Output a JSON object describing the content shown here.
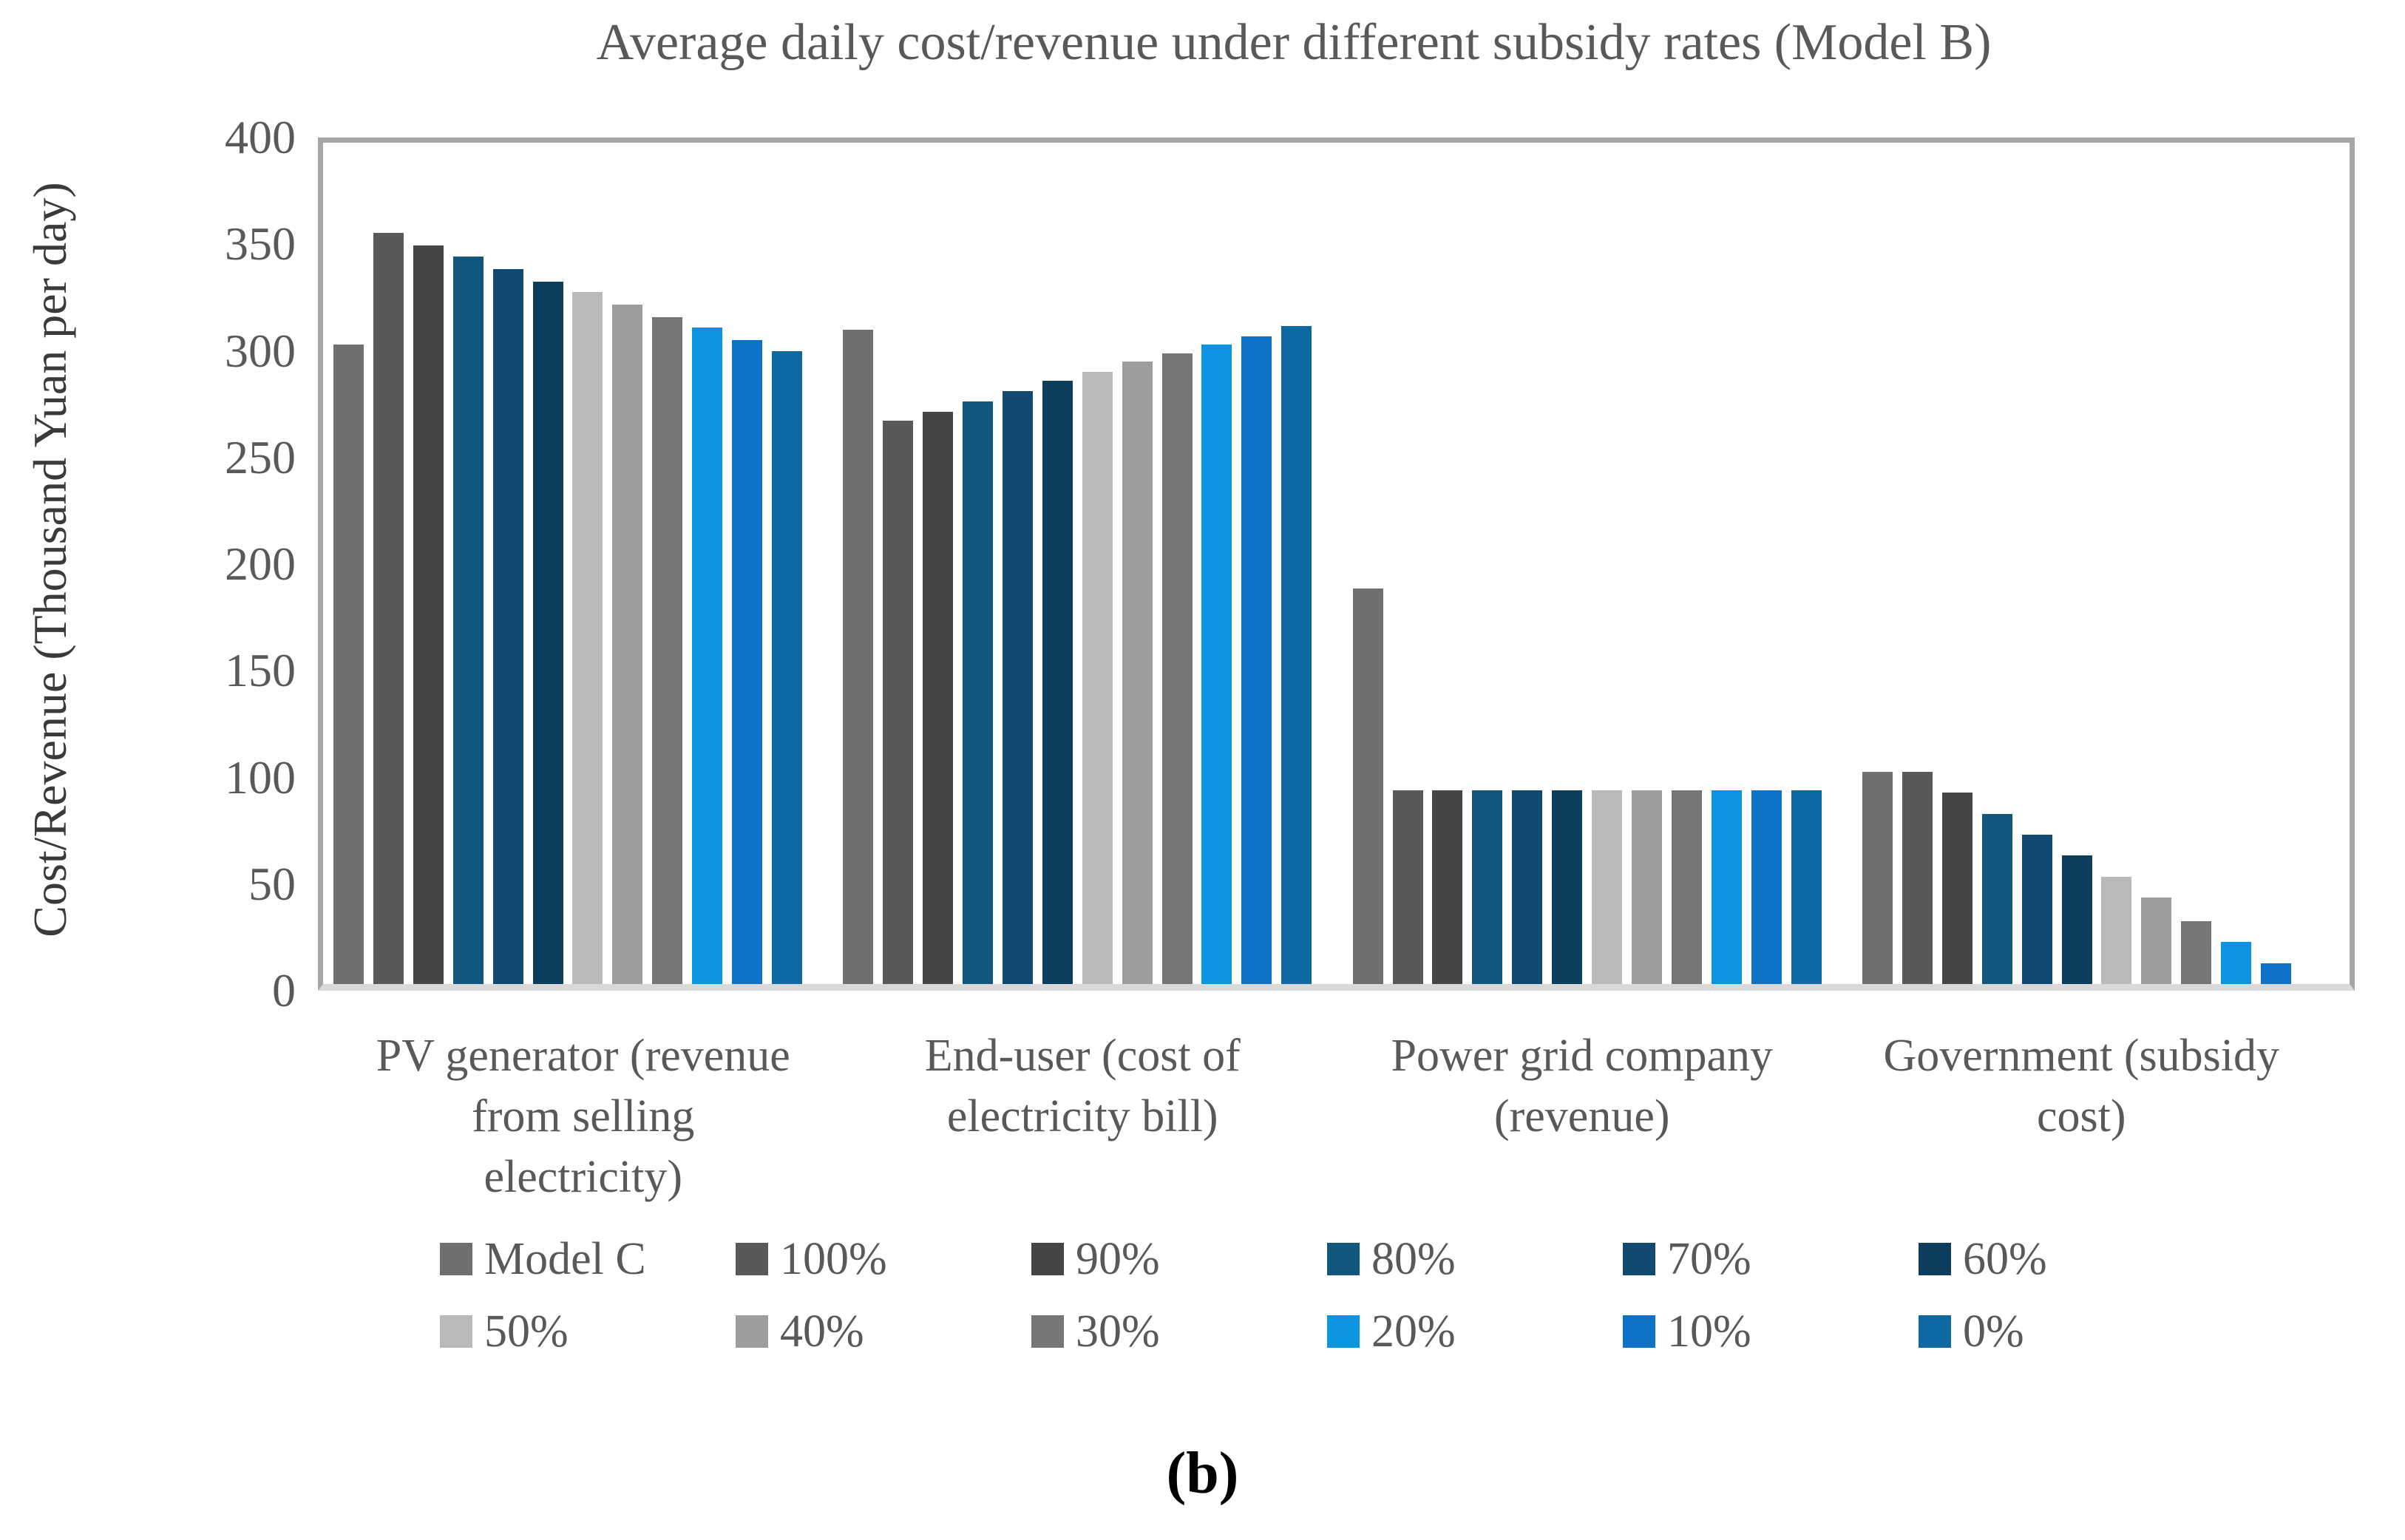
{
  "title": "Average daily cost/revenue under different subsidy rates (Model B)",
  "caption": "(b)",
  "y_axis": {
    "title": "Cost/Revenue (Thousand Yuan per day)",
    "ticks": [
      400,
      350,
      300,
      250,
      200,
      150,
      100,
      50,
      0
    ]
  },
  "colors": {
    "plot_border": "#a6a6a6",
    "axis_line": "#d9d9d9",
    "text": "#595959"
  },
  "chart_data": {
    "type": "bar",
    "title": "Average daily cost/revenue under different subsidy rates (Model B)",
    "xlabel": "",
    "ylabel": "Cost/Revenue (Thousand Yuan per day)",
    "ylim": [
      0,
      400
    ],
    "grid": false,
    "legend_position": "bottom",
    "categories": [
      "PV generator (revenue\nfrom selling\nelectricity)",
      "End-user (cost of\nelectricity bill)",
      "Power grid company\n(revenue)",
      "Government (subsidy\ncost)"
    ],
    "series": [
      {
        "name": "Model C",
        "color": "#6f6f6f",
        "values": [
          304,
          311,
          188,
          101
        ]
      },
      {
        "name": "100%",
        "color": "#595959",
        "values": [
          357,
          268,
          92,
          101
        ]
      },
      {
        "name": "90%",
        "color": "#454545",
        "values": [
          351,
          272,
          92,
          91
        ]
      },
      {
        "name": "80%",
        "color": "#11567d",
        "values": [
          346,
          277,
          92,
          81
        ]
      },
      {
        "name": "70%",
        "color": "#114a70",
        "values": [
          340,
          282,
          92,
          71
        ]
      },
      {
        "name": "60%",
        "color": "#0e3e5e",
        "values": [
          334,
          287,
          92,
          61
        ]
      },
      {
        "name": "50%",
        "color": "#b9b9b9",
        "values": [
          329,
          291,
          92,
          51
        ]
      },
      {
        "name": "40%",
        "color": "#9d9d9d",
        "values": [
          323,
          296,
          92,
          41
        ]
      },
      {
        "name": "30%",
        "color": "#767676",
        "values": [
          317,
          300,
          92,
          30
        ]
      },
      {
        "name": "20%",
        "color": "#0b94e0",
        "values": [
          312,
          304,
          92,
          20
        ]
      },
      {
        "name": "10%",
        "color": "#0d72c8",
        "values": [
          306,
          308,
          92,
          10
        ]
      },
      {
        "name": "0%",
        "color": "#0e68a2",
        "values": [
          301,
          313,
          92,
          0
        ]
      }
    ]
  }
}
